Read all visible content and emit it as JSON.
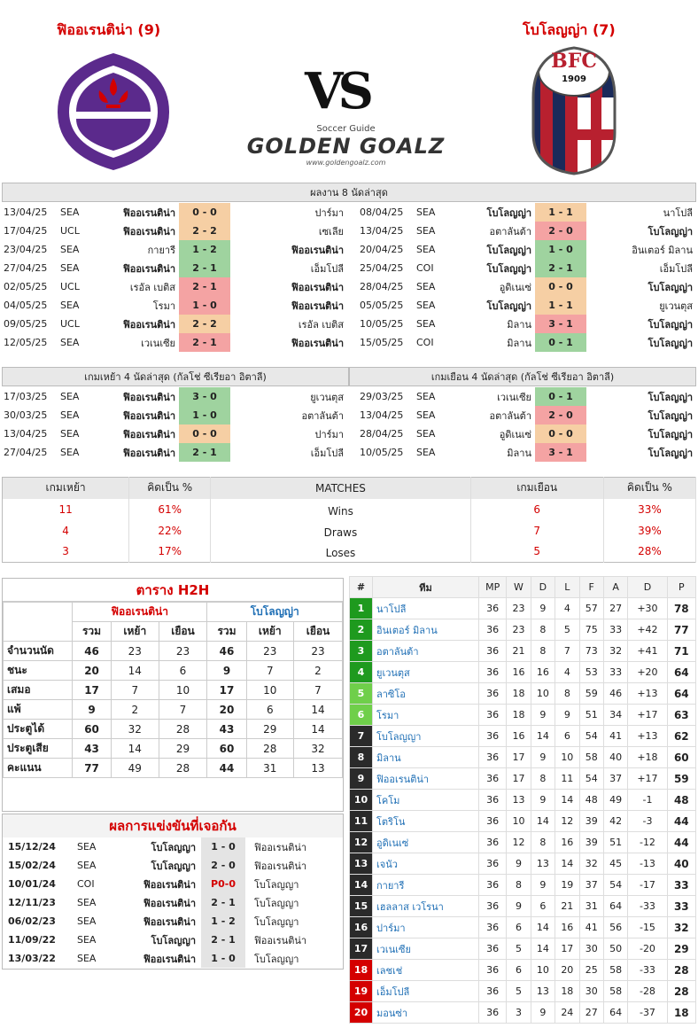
{
  "header": {
    "home_name": "ฟิออเรนติน่า (9)",
    "away_name": "โบโลญญ่า (7)",
    "vs": "VS",
    "brand_top": "Soccer Guide",
    "brand": "GOLDEN GOALZ",
    "brand_url": "www.goldengoalz.com",
    "bologna_badge": "BFC",
    "bologna_year": "1909"
  },
  "recent": {
    "title": "ผลงาน 8 นัดล่าสุด",
    "home": [
      [
        "13/04/25",
        "SEA",
        "ฟิออเรนติน่า",
        "0 - 0",
        "ปาร์มา",
        "d",
        "h"
      ],
      [
        "17/04/25",
        "UCL",
        "ฟิออเรนติน่า",
        "2 - 2",
        "เซเลีย",
        "d",
        "h"
      ],
      [
        "23/04/25",
        "SEA",
        "กายารี",
        "1 - 2",
        "ฟิออเรนติน่า",
        "w",
        "a"
      ],
      [
        "27/04/25",
        "SEA",
        "ฟิออเรนติน่า",
        "2 - 1",
        "เอ็มโปลี",
        "w",
        "h"
      ],
      [
        "02/05/25",
        "UCL",
        "เรอัล เบติส",
        "2 - 1",
        "ฟิออเรนติน่า",
        "l",
        "a"
      ],
      [
        "04/05/25",
        "SEA",
        "โรมา",
        "1 - 0",
        "ฟิออเรนติน่า",
        "l",
        "a"
      ],
      [
        "09/05/25",
        "UCL",
        "ฟิออเรนติน่า",
        "2 - 2",
        "เรอัล เบติส",
        "d",
        "h"
      ],
      [
        "12/05/25",
        "SEA",
        "เวเนเซีย",
        "2 - 1",
        "ฟิออเรนติน่า",
        "l",
        "a"
      ]
    ],
    "away": [
      [
        "08/04/25",
        "SEA",
        "โบโลญญ่า",
        "1 - 1",
        "นาโปลี",
        "d",
        "h"
      ],
      [
        "13/04/25",
        "SEA",
        "อตาลันต้า",
        "2 - 0",
        "โบโลญญ่า",
        "l",
        "a"
      ],
      [
        "20/04/25",
        "SEA",
        "โบโลญญ่า",
        "1 - 0",
        "อินเตอร์ มิลาน",
        "w",
        "h"
      ],
      [
        "25/04/25",
        "COI",
        "โบโลญญ่า",
        "2 - 1",
        "เอ็มโปลี",
        "w",
        "h"
      ],
      [
        "28/04/25",
        "SEA",
        "อูดิเนเซ่",
        "0 - 0",
        "โบโลญญ่า",
        "d",
        "a"
      ],
      [
        "05/05/25",
        "SEA",
        "โบโลญญ่า",
        "1 - 1",
        "ยูเวนตุส",
        "d",
        "h"
      ],
      [
        "10/05/25",
        "SEA",
        "มิลาน",
        "3 - 1",
        "โบโลญญ่า",
        "l",
        "a"
      ],
      [
        "15/05/25",
        "COI",
        "มิลาน",
        "0 - 1",
        "โบโลญญ่า",
        "w",
        "a"
      ]
    ]
  },
  "venue": {
    "home_title": "เกมเหย้า 4 นัดล่าสุด (กัลโช่ ซีเรียอา อิตาลี)",
    "away_title": "เกมเยือน 4 นัดล่าสุด (กัลโช่ ซีเรียอา อิตาลี)",
    "home": [
      [
        "17/03/25",
        "SEA",
        "ฟิออเรนติน่า",
        "3 - 0",
        "ยูเวนตุส",
        "w"
      ],
      [
        "30/03/25",
        "SEA",
        "ฟิออเรนติน่า",
        "1 - 0",
        "อตาลันต้า",
        "w"
      ],
      [
        "13/04/25",
        "SEA",
        "ฟิออเรนติน่า",
        "0 - 0",
        "ปาร์มา",
        "d"
      ],
      [
        "27/04/25",
        "SEA",
        "ฟิออเรนติน่า",
        "2 - 1",
        "เอ็มโปลี",
        "w"
      ]
    ],
    "away": [
      [
        "29/03/25",
        "SEA",
        "เวเนเซีย",
        "0 - 1",
        "โบโลญญ่า",
        "w"
      ],
      [
        "13/04/25",
        "SEA",
        "อตาลันต้า",
        "2 - 0",
        "โบโลญญ่า",
        "l"
      ],
      [
        "28/04/25",
        "SEA",
        "อูดิเนเซ่",
        "0 - 0",
        "โบโลญญ่า",
        "d"
      ],
      [
        "10/05/25",
        "SEA",
        "มิลาน",
        "3 - 1",
        "โบโลญญ่า",
        "l"
      ]
    ]
  },
  "stats": {
    "h1": "เกมเหย้า",
    "h2": "คิดเป็น  %",
    "h3": "MATCHES",
    "h4": "เกมเยือน",
    "h5": "คิดเป็น  %",
    "rows": [
      [
        "11",
        "61%",
        "Wins",
        "6",
        "33%"
      ],
      [
        "4",
        "22%",
        "Draws",
        "7",
        "39%"
      ],
      [
        "3",
        "17%",
        "Loses",
        "5",
        "28%"
      ]
    ]
  },
  "h2h": {
    "title": "ตาราง H2H",
    "home": "ฟิออเรนติน่า",
    "away": "โบโลญญ่า",
    "cols": [
      "รวม",
      "เหย้า",
      "เยือน",
      "รวม",
      "เหย้า",
      "เยือน"
    ],
    "rows": [
      [
        "จำนวนนัด",
        "46",
        "23",
        "23",
        "46",
        "23",
        "23"
      ],
      [
        "ชนะ",
        "20",
        "14",
        "6",
        "9",
        "7",
        "2"
      ],
      [
        "เสมอ",
        "17",
        "7",
        "10",
        "17",
        "10",
        "7"
      ],
      [
        "แพ้",
        "9",
        "2",
        "7",
        "20",
        "6",
        "14"
      ],
      [
        "ประตูได้",
        "60",
        "32",
        "28",
        "43",
        "29",
        "14"
      ],
      [
        "ประตูเสีย",
        "43",
        "14",
        "29",
        "60",
        "28",
        "32"
      ],
      [
        "คะแนน",
        "77",
        "49",
        "28",
        "44",
        "31",
        "13"
      ]
    ]
  },
  "meetings": {
    "title": "ผลการแข่งขันที่เจอกัน",
    "rows": [
      [
        "15/12/24",
        "SEA",
        "โบโลญญา",
        "1 - 0",
        "ฟิออเรนติน่า",
        "h"
      ],
      [
        "15/02/24",
        "SEA",
        "โบโลญญา",
        "2 - 0",
        "ฟิออเรนติน่า",
        "h"
      ],
      [
        "10/01/24",
        "COI",
        "ฟิออเรนติน่า",
        "P0-0",
        "โบโลญญา",
        "h"
      ],
      [
        "12/11/23",
        "SEA",
        "ฟิออเรนติน่า",
        "2 - 1",
        "โบโลญญา",
        "h"
      ],
      [
        "06/02/23",
        "SEA",
        "ฟิออเรนติน่า",
        "1 - 2",
        "โบโลญญา",
        "a"
      ],
      [
        "11/09/22",
        "SEA",
        "โบโลญญา",
        "2 - 1",
        "ฟิออเรนติน่า",
        "h"
      ],
      [
        "13/03/22",
        "SEA",
        "ฟิออเรนติน่า",
        "1 - 0",
        "โบโลญญา",
        "h"
      ]
    ]
  },
  "league": {
    "cols": [
      "#",
      "ทีม",
      "MP",
      "W",
      "D",
      "L",
      "F",
      "A",
      "D",
      "P"
    ],
    "rows": [
      [
        "1",
        "นาโปลี",
        "36",
        "23",
        "9",
        "4",
        "57",
        "27",
        "+30",
        "78",
        "g"
      ],
      [
        "2",
        "อินเตอร์ มิลาน",
        "36",
        "23",
        "8",
        "5",
        "75",
        "33",
        "+42",
        "77",
        "g"
      ],
      [
        "3",
        "อตาลันต้า",
        "36",
        "21",
        "8",
        "7",
        "73",
        "32",
        "+41",
        "71",
        "g"
      ],
      [
        "4",
        "ยูเวนตุส",
        "36",
        "16",
        "16",
        "4",
        "53",
        "33",
        "+20",
        "64",
        "g"
      ],
      [
        "5",
        "ลาซิโอ",
        "36",
        "18",
        "10",
        "8",
        "59",
        "46",
        "+13",
        "64",
        "lg2"
      ],
      [
        "6",
        "โรมา",
        "36",
        "18",
        "9",
        "9",
        "51",
        "34",
        "+17",
        "63",
        "lg2"
      ],
      [
        "7",
        "โบโลญญา",
        "36",
        "16",
        "14",
        "6",
        "54",
        "41",
        "+13",
        "62",
        "dk"
      ],
      [
        "8",
        "มิลาน",
        "36",
        "17",
        "9",
        "10",
        "58",
        "40",
        "+18",
        "60",
        "dk"
      ],
      [
        "9",
        "ฟิออเรนติน่า",
        "36",
        "17",
        "8",
        "11",
        "54",
        "37",
        "+17",
        "59",
        "dk"
      ],
      [
        "10",
        "โคโม",
        "36",
        "13",
        "9",
        "14",
        "48",
        "49",
        "-1",
        "48",
        "dk"
      ],
      [
        "11",
        "โตริโน",
        "36",
        "10",
        "14",
        "12",
        "39",
        "42",
        "-3",
        "44",
        "dk"
      ],
      [
        "12",
        "อูดิเนเซ่",
        "36",
        "12",
        "8",
        "16",
        "39",
        "51",
        "-12",
        "44",
        "dk"
      ],
      [
        "13",
        "เจนัว",
        "36",
        "9",
        "13",
        "14",
        "32",
        "45",
        "-13",
        "40",
        "dk"
      ],
      [
        "14",
        "กายารี",
        "36",
        "8",
        "9",
        "19",
        "37",
        "54",
        "-17",
        "33",
        "dk"
      ],
      [
        "15",
        "เฮลลาส เวโรนา",
        "36",
        "9",
        "6",
        "21",
        "31",
        "64",
        "-33",
        "33",
        "dk"
      ],
      [
        "16",
        "ปาร์มา",
        "36",
        "6",
        "14",
        "16",
        "41",
        "56",
        "-15",
        "32",
        "dk"
      ],
      [
        "17",
        "เวเนเซีย",
        "36",
        "5",
        "14",
        "17",
        "30",
        "50",
        "-20",
        "29",
        "dk"
      ],
      [
        "18",
        "เลชเช่",
        "36",
        "6",
        "10",
        "20",
        "25",
        "58",
        "-33",
        "28",
        "r"
      ],
      [
        "19",
        "เอ็มโปลี",
        "36",
        "5",
        "13",
        "18",
        "30",
        "58",
        "-28",
        "28",
        "r"
      ],
      [
        "20",
        "มอนซ่า",
        "36",
        "3",
        "9",
        "24",
        "27",
        "64",
        "-37",
        "18",
        "r"
      ]
    ]
  },
  "colors": {
    "win": "#9fd39f",
    "draw": "#f6cfa4",
    "loss": "#f4a3a3",
    "accent": "#d40000",
    "purple": "#5b2a8c"
  }
}
